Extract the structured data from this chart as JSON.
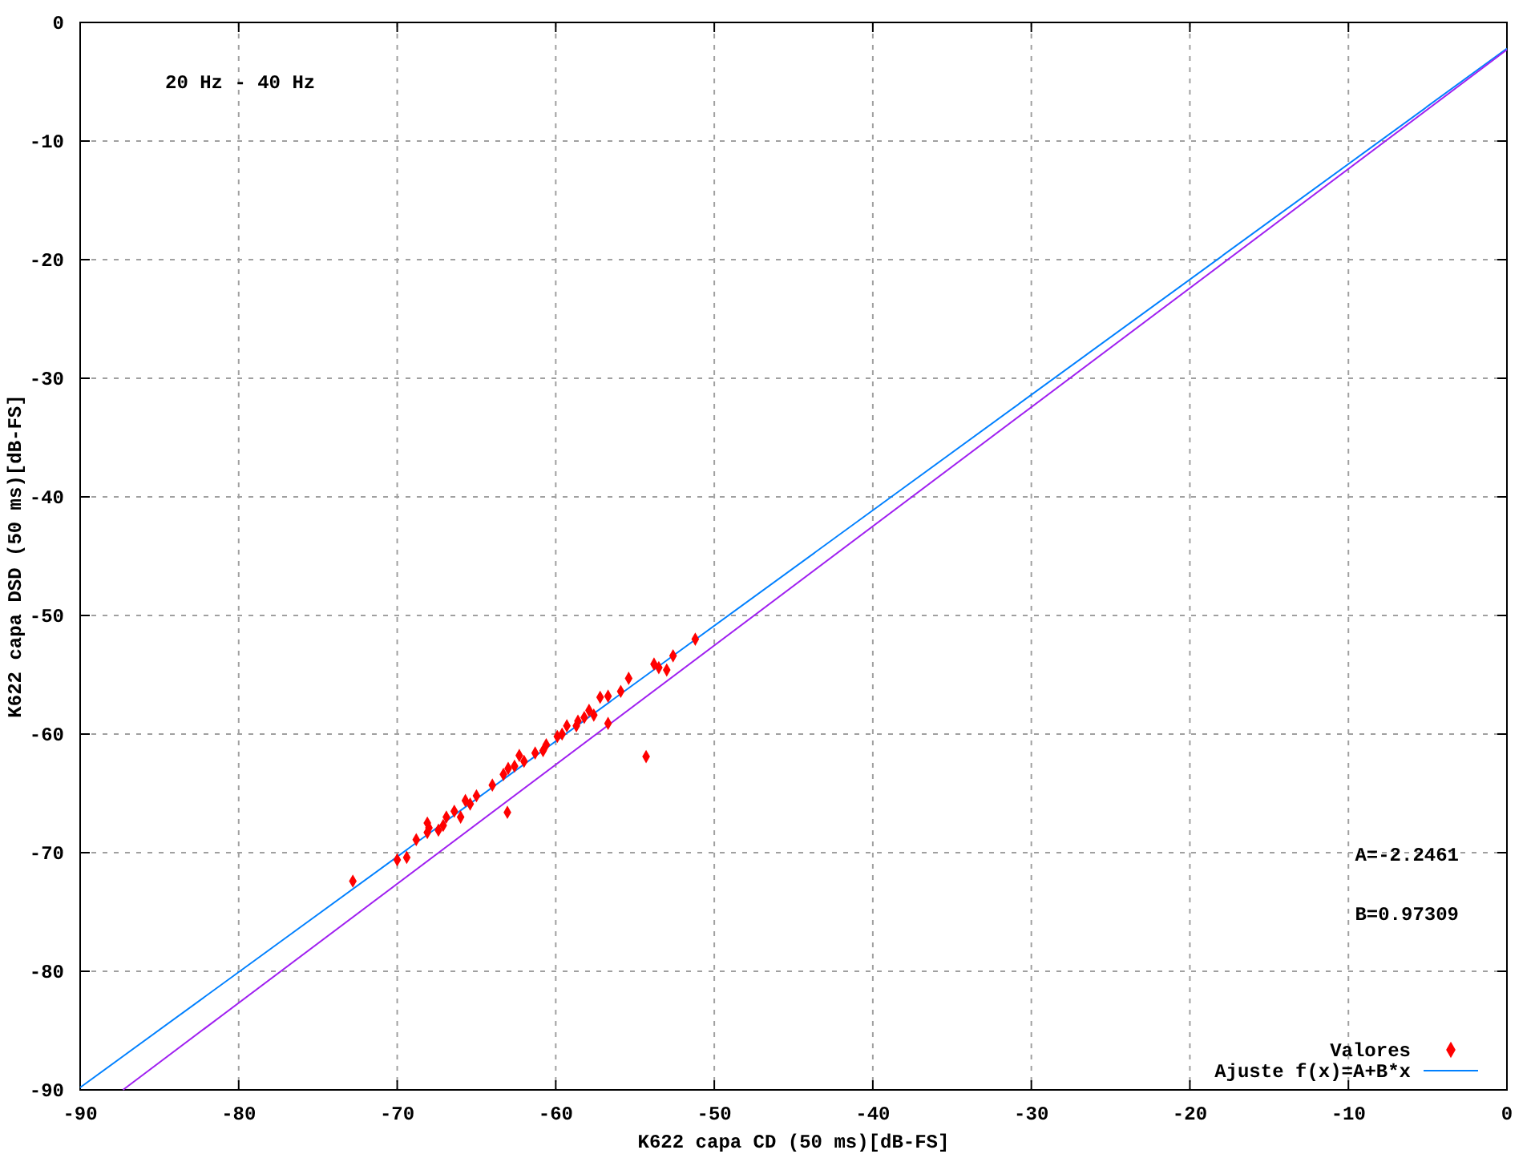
{
  "chart_data": {
    "type": "scatter",
    "xlabel": "K622 capa CD (50 ms)[dB-FS]",
    "ylabel": "K622 capa DSD (50 ms)[dB-FS]",
    "annotations": [
      "20 Hz - 40 Hz",
      "A=-2.2461",
      "B=0.97309"
    ],
    "xlim": [
      -90,
      0
    ],
    "ylim": [
      -90,
      0
    ],
    "xticks": [
      -90,
      -80,
      -70,
      -60,
      -50,
      -40,
      -30,
      -20,
      -10,
      0
    ],
    "yticks": [
      -90,
      -80,
      -70,
      -60,
      -50,
      -40,
      -30,
      -20,
      -10,
      0
    ],
    "grid": true,
    "legend": "bottom right",
    "series": [
      {
        "name": "Valores",
        "marker": "diamond",
        "color": "#ff0000",
        "x": [
          -72.8,
          -70,
          -69.4,
          -68.8,
          -68.1,
          -67.1,
          -65.7,
          -64,
          -63.05,
          -62.3,
          -61.3,
          -59.9,
          -59.3,
          -58.6,
          -57.2,
          -56.7,
          -56.7,
          -55.9,
          -55.4,
          -54.3,
          -53.8,
          -53.5,
          -53,
          -52.6,
          -51.2,
          -68,
          -66.4,
          -65,
          -63.3,
          -62.6,
          -62,
          -60.6,
          -59.6,
          -58.7,
          -57.9,
          -57.6,
          -58.2,
          -60.8,
          -63,
          -65.4,
          -66,
          -66.9,
          -67.4,
          -68.1
        ],
        "values": [
          -72.4,
          -70.6,
          -70.4,
          -68.9,
          -67.5,
          -67.7,
          -65.6,
          -64.3,
          -66.6,
          -61.8,
          -61.6,
          -60.2,
          -59.3,
          -58.9,
          -56.9,
          -56.8,
          -59.1,
          -56.4,
          -55.3,
          -61.9,
          -54.1,
          -54.4,
          -54.6,
          -53.4,
          -52,
          -67.9,
          -66.5,
          -65.2,
          -63.4,
          -62.7,
          -62.3,
          -60.9,
          -60,
          -59.3,
          -58,
          -58.4,
          -58.6,
          -61.4,
          -62.9,
          -65.9,
          -67,
          -67,
          -68.1,
          -68.3
        ]
      },
      {
        "name": "Ajuste f(x)=A+B*x",
        "type": "line",
        "color": "#0080ff",
        "x": [
          -90,
          0
        ],
        "values": [
          -89.8,
          -2.2
        ]
      },
      {
        "type": "line",
        "color": "#a020f0",
        "x": [
          -87.3,
          0
        ],
        "values": [
          -90,
          -2.3
        ]
      }
    ]
  }
}
